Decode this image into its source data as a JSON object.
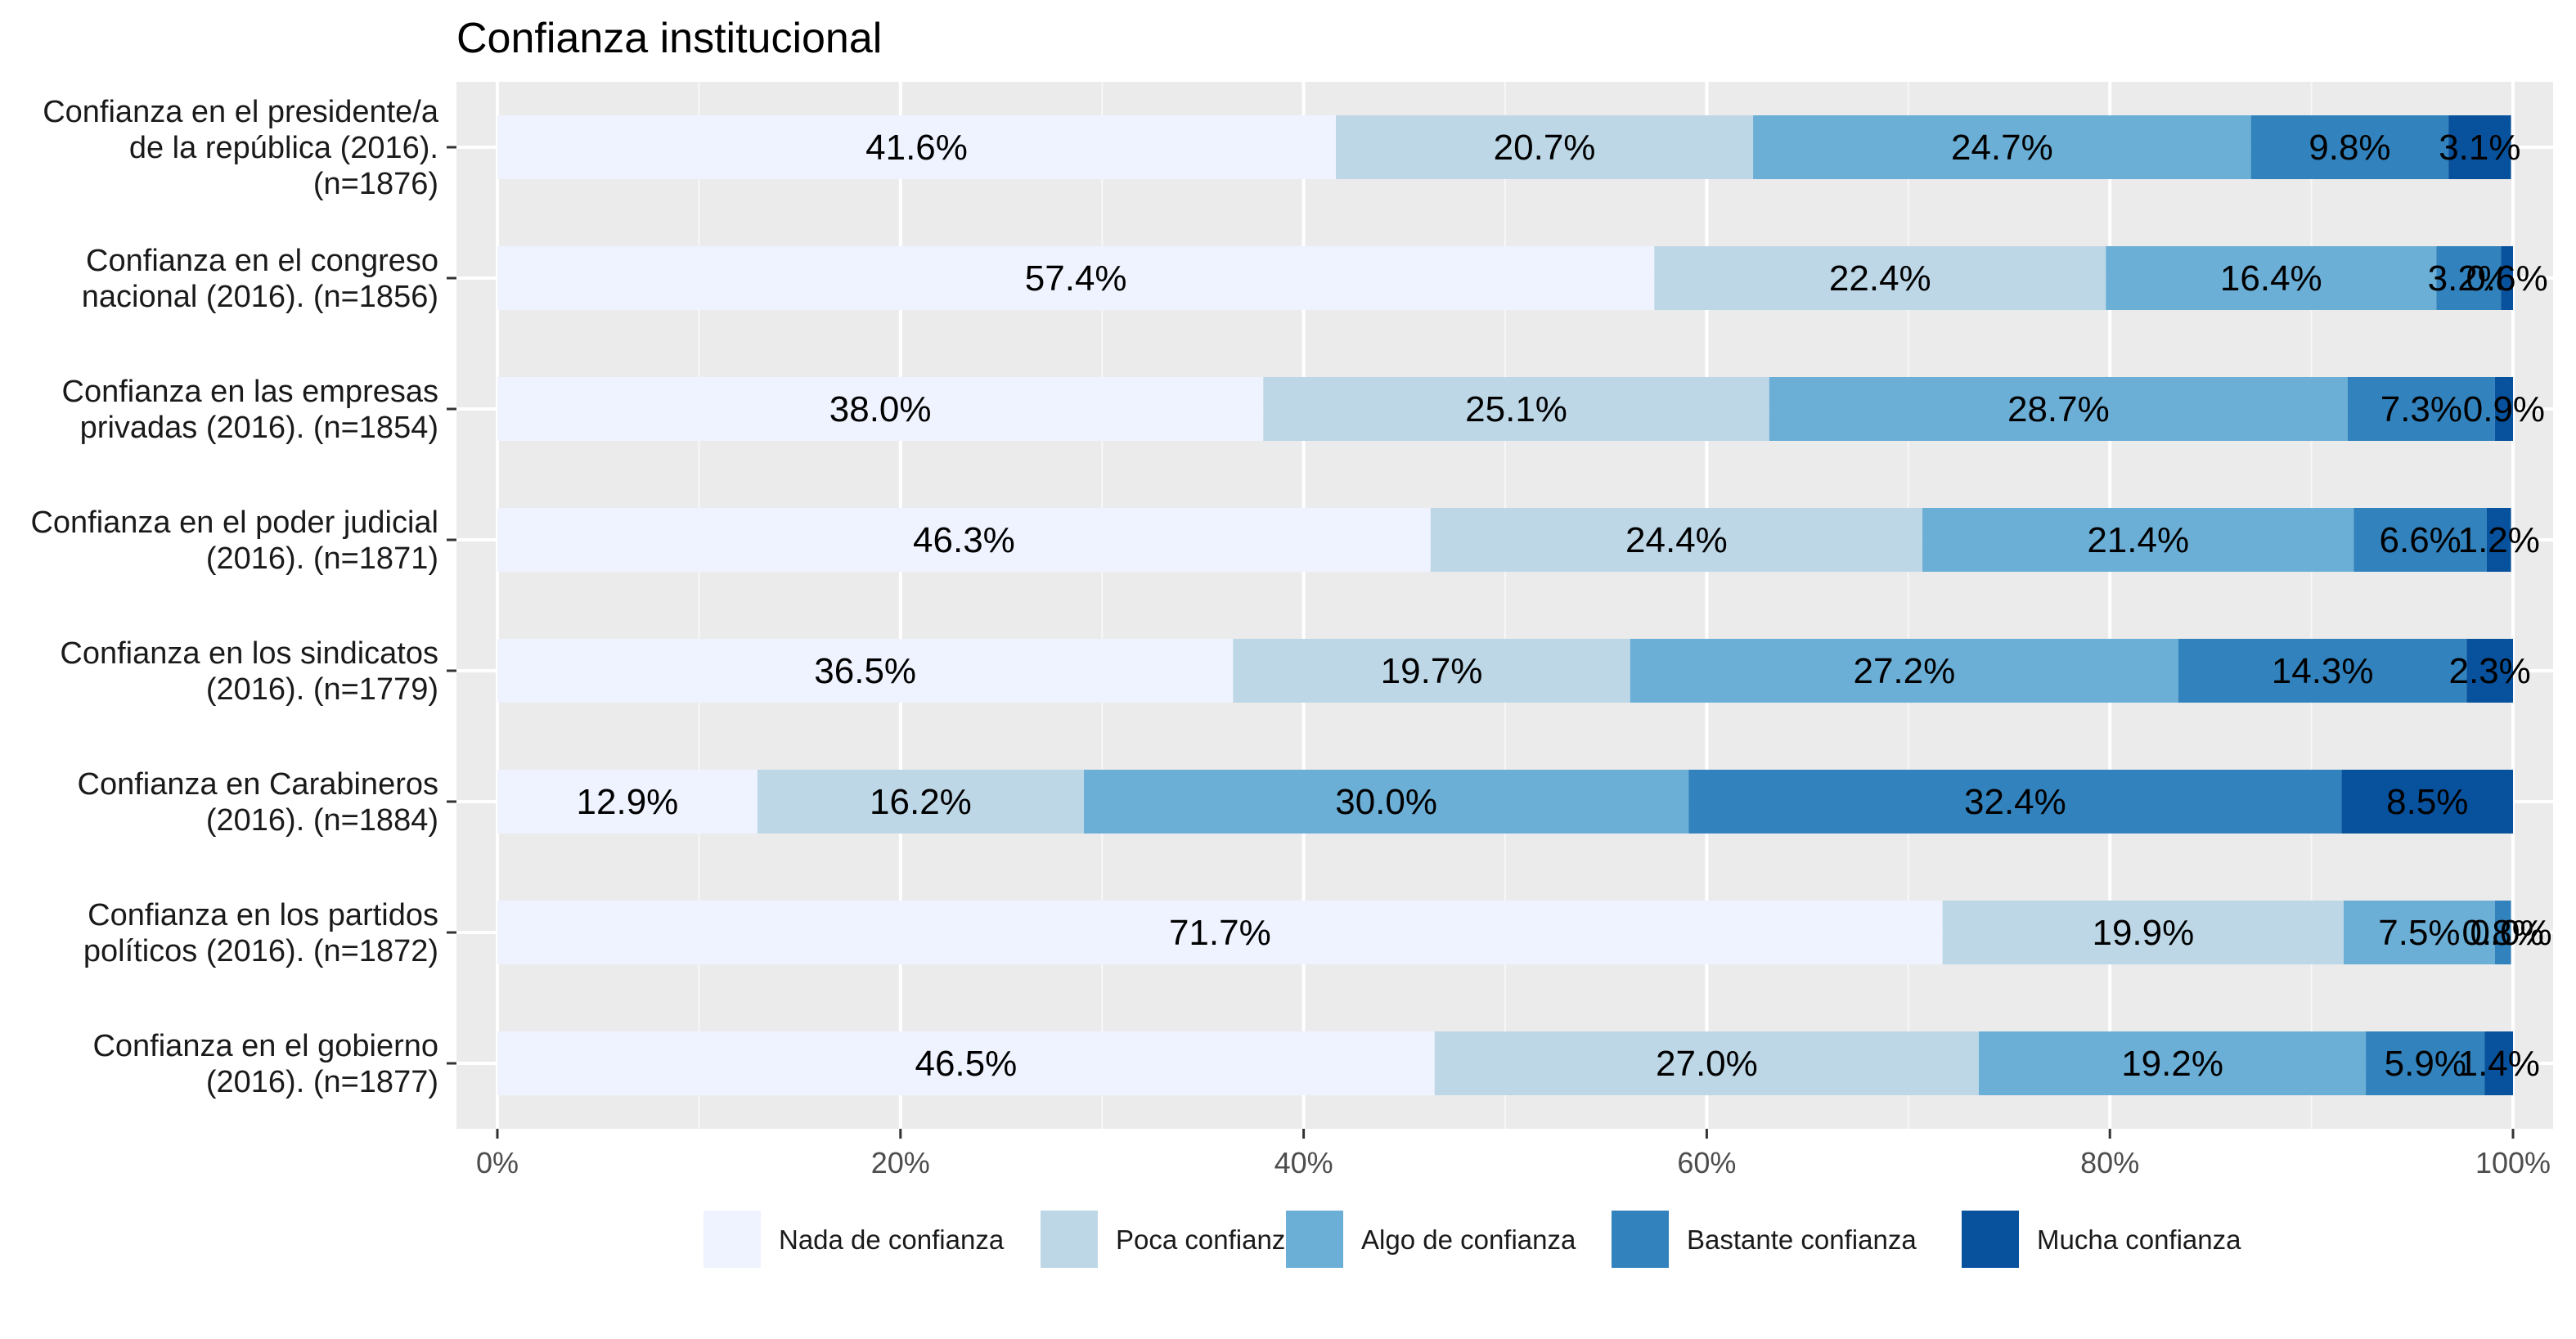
{
  "chart_data": {
    "type": "bar",
    "orientation": "horizontal",
    "stacked": "percent",
    "title": "Confianza institucional",
    "categories": [
      [
        "Confianza en el presidente/a",
        "de la república (2016).",
        "(n=1876)"
      ],
      [
        "Confianza en el congreso",
        "nacional (2016). (n=1856)"
      ],
      [
        "Confianza en las empresas",
        "privadas (2016). (n=1854)"
      ],
      [
        "Confianza en el poder judicial",
        "(2016). (n=1871)"
      ],
      [
        "Confianza en los sindicatos",
        "(2016). (n=1779)"
      ],
      [
        "Confianza en Carabineros",
        "(2016). (n=1884)"
      ],
      [
        "Confianza en los partidos",
        "políticos (2016). (n=1872)"
      ],
      [
        "Confianza en el gobierno",
        "(2016). (n=1877)"
      ]
    ],
    "series": [
      {
        "name": "Nada de confianza",
        "color": "#eff3ff",
        "values": [
          41.6,
          57.4,
          38.0,
          46.3,
          36.5,
          12.9,
          71.7,
          46.5
        ]
      },
      {
        "name": "Poca confianza",
        "color": "#bdd7e7",
        "values": [
          20.7,
          22.4,
          25.1,
          24.4,
          19.7,
          16.2,
          19.9,
          27.0
        ]
      },
      {
        "name": "Algo de confianza",
        "color": "#6baed6",
        "values": [
          24.7,
          16.4,
          28.7,
          21.4,
          27.2,
          30.0,
          7.5,
          19.2
        ]
      },
      {
        "name": "Bastante confianza",
        "color": "#3182bd",
        "values": [
          9.8,
          3.2,
          7.3,
          6.6,
          14.3,
          32.4,
          0.8,
          5.9
        ]
      },
      {
        "name": "Mucha confianza",
        "color": "#08519c",
        "values": [
          3.1,
          0.6,
          0.9,
          1.2,
          2.3,
          8.5,
          0.0,
          1.4
        ]
      }
    ],
    "data_labels": [
      [
        "41.6%",
        "20.7%",
        "24.7%",
        "9.8%",
        "3.1%"
      ],
      [
        "57.4%",
        "22.4%",
        "16.4%",
        "3.2%",
        "0.6%"
      ],
      [
        "38.0%",
        "25.1%",
        "28.7%",
        "7.3%",
        "0.9%"
      ],
      [
        "46.3%",
        "24.4%",
        "21.4%",
        "6.6%",
        "1.2%"
      ],
      [
        "36.5%",
        "19.7%",
        "27.2%",
        "14.3%",
        "2.3%"
      ],
      [
        "12.9%",
        "16.2%",
        "30.0%",
        "32.4%",
        "8.5%"
      ],
      [
        "71.7%",
        "19.9%",
        "7.5%",
        "0.8%",
        "0.0%"
      ],
      [
        "46.5%",
        "27.0%",
        "19.2%",
        "5.9%",
        "1.4%"
      ]
    ],
    "x_ticks": [
      0,
      20,
      40,
      60,
      80,
      100
    ],
    "x_tick_labels": [
      "0%",
      "20%",
      "40%",
      "60%",
      "80%",
      "100%"
    ],
    "xlim": [
      0,
      100
    ],
    "xlabel": "",
    "ylabel": "",
    "grid": true,
    "legend_position": "bottom",
    "panel_background": "#ebebeb"
  }
}
